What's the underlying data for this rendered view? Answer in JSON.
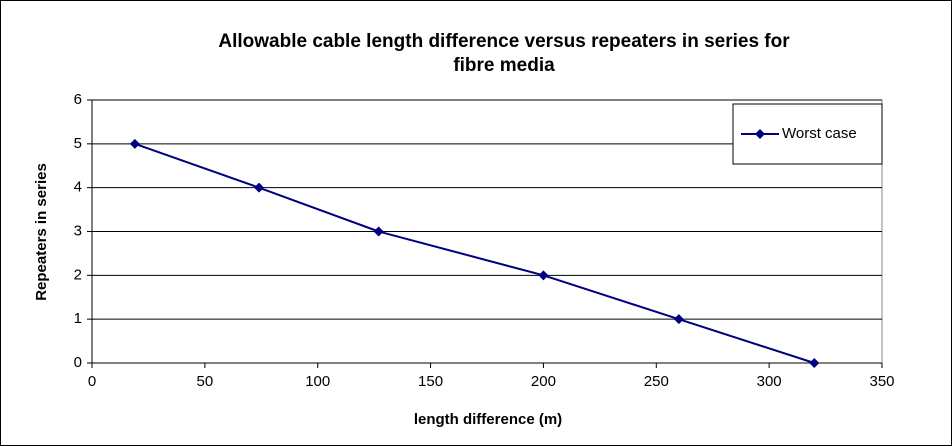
{
  "chart_data": {
    "type": "line",
    "title": "Allowable cable length difference versus repeaters in series for fibre media",
    "x_label": "length difference (m)",
    "y_label": "Repeaters in series",
    "x": [
      19,
      74,
      127,
      200,
      260,
      320
    ],
    "series": [
      {
        "name": "Worst case",
        "color": "#000080",
        "values": [
          5,
          4,
          3,
          2,
          1,
          0
        ]
      }
    ],
    "xlim": [
      0,
      350
    ],
    "xticks": [
      0,
      50,
      100,
      150,
      200,
      250,
      300,
      350
    ],
    "ylim": [
      0,
      6
    ],
    "yticks": [
      0,
      1,
      2,
      3,
      4,
      5,
      6
    ],
    "grid": true,
    "legend": "top-right"
  }
}
